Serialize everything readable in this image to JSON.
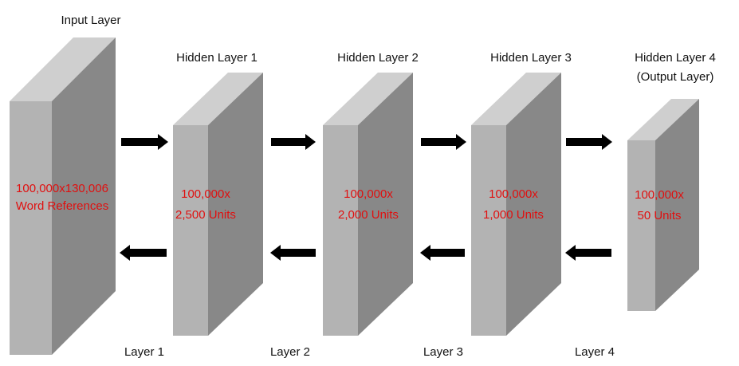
{
  "colors": {
    "front_face": "#b3b3b3",
    "side_face": "#888888",
    "top_face": "#cfcfcf",
    "arrow": "#000000",
    "unit_text": "#e01010",
    "label_text": "#111111"
  },
  "blocks": [
    {
      "title": "Input Layer",
      "units_line1": "100,000x130,006",
      "units_line2": "Word References"
    },
    {
      "title": "Hidden Layer 1",
      "units_line1": "100,000x",
      "units_line2": "2,500 Units"
    },
    {
      "title": "Hidden Layer 2",
      "units_line1": "100,000x",
      "units_line2": "2,000 Units"
    },
    {
      "title": "Hidden Layer 3",
      "units_line1": "100,000x",
      "units_line2": "1,000 Units"
    },
    {
      "title": "Hidden Layer 4",
      "title_line2": "(Output Layer)",
      "units_line1": "100,000x",
      "units_line2": "50 Units"
    }
  ],
  "layer_labels": [
    "Layer 1",
    "Layer 2",
    "Layer 3",
    "Layer 4"
  ],
  "arrows": {
    "forward_icon": "arrow-right-icon",
    "backward_icon": "arrow-left-icon"
  }
}
